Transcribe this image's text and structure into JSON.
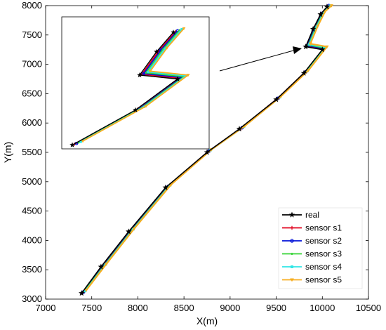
{
  "chart_data": {
    "type": "line",
    "title": "",
    "xlabel": "X(m)",
    "ylabel": "Y(m)",
    "xlim": [
      7000,
      10500
    ],
    "ylim": [
      3000,
      8000
    ],
    "xticks": [
      7000,
      7500,
      8000,
      8500,
      9000,
      9500,
      10000,
      10500
    ],
    "yticks": [
      3000,
      3500,
      4000,
      4500,
      5000,
      5500,
      6000,
      6500,
      7000,
      7500,
      8000
    ],
    "grid": false,
    "legend_position": "bottom-right",
    "series": [
      {
        "name": "real",
        "color": "#000000",
        "marker": "star",
        "x": [
          7390,
          7600,
          7900,
          8300,
          8750,
          9100,
          9500,
          9800,
          10000,
          9820,
          9900,
          9980,
          10050
        ],
        "y": [
          3100,
          3550,
          4150,
          4900,
          5500,
          5900,
          6400,
          6850,
          7250,
          7300,
          7600,
          7850,
          7980
        ]
      },
      {
        "name": "sensor s1",
        "color": "#e0001b",
        "marker": "plus",
        "x": [
          7400,
          7620,
          7920,
          8320,
          8760,
          9120,
          9510,
          9810,
          10010,
          9830,
          9910,
          9990,
          10060
        ],
        "y": [
          3110,
          3560,
          4160,
          4910,
          5510,
          5910,
          6410,
          6860,
          7260,
          7310,
          7610,
          7860,
          7990
        ]
      },
      {
        "name": "sensor s2",
        "color": "#0010d8",
        "marker": "circle",
        "x": [
          7410,
          7630,
          7930,
          8330,
          8770,
          9130,
          9520,
          9820,
          10020,
          9840,
          9920,
          10000,
          10070
        ],
        "y": [
          3120,
          3570,
          4170,
          4920,
          5520,
          5920,
          6420,
          6870,
          7270,
          7320,
          7620,
          7870,
          8000
        ]
      },
      {
        "name": "sensor s3",
        "color": "#35d435",
        "marker": "dot",
        "x": [
          7420,
          7640,
          7940,
          8340,
          8780,
          9140,
          9530,
          9830,
          10030,
          9850,
          9930,
          10010,
          10080
        ],
        "y": [
          3130,
          3580,
          4180,
          4930,
          5530,
          5930,
          6430,
          6880,
          7280,
          7330,
          7630,
          7880,
          8000
        ]
      },
      {
        "name": "sensor s4",
        "color": "#2fe6e6",
        "marker": "square",
        "x": [
          7430,
          7650,
          7950,
          8350,
          8790,
          9150,
          9540,
          9840,
          10040,
          9860,
          9940,
          10020,
          10090
        ],
        "y": [
          3140,
          3590,
          4190,
          4940,
          5540,
          5940,
          6440,
          6890,
          7290,
          7340,
          7640,
          7890,
          8000
        ]
      },
      {
        "name": "sensor s5",
        "color": "#f7ad1f",
        "marker": "triangle-down",
        "x": [
          7440,
          7660,
          7960,
          8360,
          8800,
          9160,
          9550,
          9850,
          10050,
          9870,
          9950,
          10030,
          10100
        ],
        "y": [
          3150,
          3600,
          4200,
          4950,
          5550,
          5950,
          6450,
          6900,
          7300,
          7350,
          7650,
          7900,
          8000
        ]
      }
    ],
    "annotations": [
      {
        "type": "inset",
        "content": "magnified view of the upper-right end of the trajectories"
      },
      {
        "type": "arrow",
        "from": [
          8900,
          6950
        ],
        "to": [
          9800,
          7270
        ]
      }
    ]
  }
}
